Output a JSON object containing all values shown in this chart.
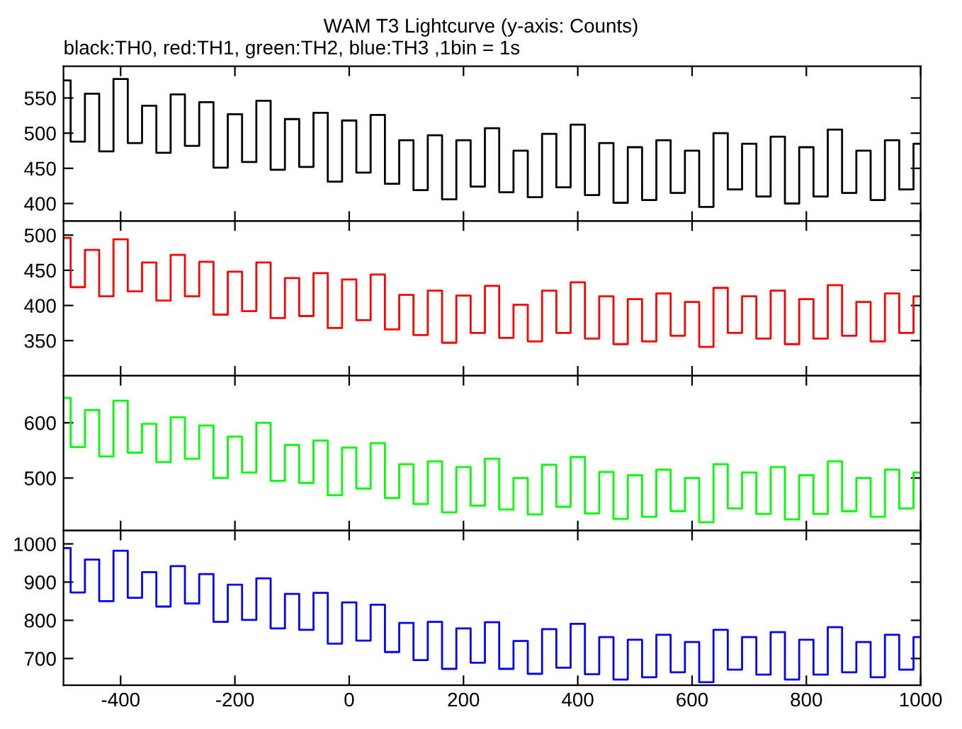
{
  "chart_data": [
    {
      "type": "step",
      "title": "WAM T3 Lightcurve (y-axis: Counts)",
      "subtitle": "black:TH0, red:TH1, green:TH2, blue:TH3 ,1bin = 1s",
      "tick_labels": "y",
      "x": [
        -500,
        -475,
        -450,
        -425,
        -400,
        -375,
        -350,
        -325,
        -300,
        -275,
        -250,
        -225,
        -200,
        -175,
        -150,
        -125,
        -100,
        -75,
        -50,
        -25,
        0,
        25,
        50,
        75,
        100,
        125,
        150,
        175,
        200,
        225,
        250,
        275,
        300,
        325,
        350,
        375,
        400,
        425,
        450,
        475,
        500,
        525,
        550,
        575,
        600,
        625,
        650,
        675,
        700,
        725,
        750,
        775,
        800,
        825,
        850,
        875,
        900,
        925,
        950,
        975,
        1000
      ],
      "series": [
        {
          "color": "#000000",
          "values": [
            575,
            488,
            556,
            474,
            577,
            486,
            539,
            472,
            555,
            482,
            544,
            451,
            527,
            459,
            546,
            448,
            520,
            452,
            529,
            431,
            518,
            444,
            526,
            428,
            490,
            419,
            497,
            406,
            490,
            424,
            507,
            416,
            475,
            409,
            499,
            423,
            512,
            412,
            486,
            401,
            480,
            405,
            490,
            415,
            475,
            395,
            500,
            420,
            485,
            410,
            495,
            400,
            480,
            410,
            505,
            415,
            475,
            405,
            490,
            420,
            485
          ]
        }
      ],
      "xlim": [
        -500,
        1000
      ],
      "xticks": [
        -400,
        -200,
        0,
        200,
        400,
        600,
        800,
        1000
      ],
      "ylim": [
        375,
        595
      ],
      "yticks": [
        400,
        450,
        500,
        550
      ]
    },
    {
      "type": "step",
      "tick_labels": "y",
      "x": [
        -500,
        -475,
        -450,
        -425,
        -400,
        -375,
        -350,
        -325,
        -300,
        -275,
        -250,
        -225,
        -200,
        -175,
        -150,
        -125,
        -100,
        -75,
        -50,
        -25,
        0,
        25,
        50,
        75,
        100,
        125,
        150,
        175,
        200,
        225,
        250,
        275,
        300,
        325,
        350,
        375,
        400,
        425,
        450,
        475,
        500,
        525,
        550,
        575,
        600,
        625,
        650,
        675,
        700,
        725,
        750,
        775,
        800,
        825,
        850,
        875,
        900,
        925,
        950,
        975,
        1000
      ],
      "series": [
        {
          "color": "#ff0000",
          "values": [
            496,
            426,
            479,
            413,
            494,
            420,
            461,
            407,
            472,
            413,
            462,
            387,
            448,
            392,
            461,
            382,
            439,
            385,
            446,
            368,
            437,
            379,
            444,
            366,
            415,
            358,
            421,
            347,
            414,
            361,
            428,
            354,
            401,
            349,
            421,
            361,
            433,
            353,
            413,
            345,
            409,
            349,
            417,
            357,
            405,
            341,
            425,
            361,
            413,
            353,
            421,
            345,
            409,
            353,
            429,
            357,
            405,
            349,
            417,
            361,
            413
          ]
        }
      ],
      "xlim": [
        -500,
        1000
      ],
      "xticks": [
        -400,
        -200,
        0,
        200,
        400,
        600,
        800,
        1000
      ],
      "ylim": [
        300,
        520
      ],
      "yticks": [
        350,
        400,
        450,
        500
      ]
    },
    {
      "type": "step",
      "tick_labels": "y",
      "x": [
        -500,
        -475,
        -450,
        -425,
        -400,
        -375,
        -350,
        -325,
        -300,
        -275,
        -250,
        -225,
        -200,
        -175,
        -150,
        -125,
        -100,
        -75,
        -50,
        -25,
        0,
        25,
        50,
        75,
        100,
        125,
        150,
        175,
        200,
        225,
        250,
        275,
        300,
        325,
        350,
        375,
        400,
        425,
        450,
        475,
        500,
        525,
        550,
        575,
        600,
        625,
        650,
        675,
        700,
        725,
        750,
        775,
        800,
        825,
        850,
        875,
        900,
        925,
        950,
        975,
        1000
      ],
      "series": [
        {
          "color": "#00ff00",
          "values": [
            645,
            556,
            623,
            539,
            640,
            546,
            598,
            529,
            610,
            535,
            595,
            500,
            575,
            510,
            600,
            495,
            560,
            491,
            568,
            469,
            555,
            481,
            563,
            464,
            525,
            453,
            530,
            438,
            520,
            450,
            535,
            443,
            500,
            434,
            524,
            448,
            538,
            436,
            511,
            426,
            505,
            430,
            515,
            440,
            500,
            420,
            525,
            445,
            510,
            435,
            520,
            425,
            505,
            435,
            530,
            440,
            500,
            430,
            515,
            445,
            510
          ]
        }
      ],
      "xlim": [
        -500,
        1000
      ],
      "xticks": [
        -400,
        -200,
        0,
        200,
        400,
        600,
        800,
        1000
      ],
      "ylim": [
        405,
        685
      ],
      "yticks": [
        500,
        600
      ]
    },
    {
      "type": "step",
      "x": [
        -500,
        -475,
        -450,
        -425,
        -400,
        -375,
        -350,
        -325,
        -300,
        -275,
        -250,
        -225,
        -200,
        -175,
        -150,
        -125,
        -100,
        -75,
        -50,
        -25,
        0,
        25,
        50,
        75,
        100,
        125,
        150,
        175,
        200,
        225,
        250,
        275,
        300,
        325,
        350,
        375,
        400,
        425,
        450,
        475,
        500,
        525,
        550,
        575,
        600,
        625,
        650,
        675,
        700,
        725,
        750,
        775,
        800,
        825,
        850,
        875,
        900,
        925,
        950,
        975,
        1000
      ],
      "series": [
        {
          "color": "#0000ff",
          "values": [
            989,
            873,
            959,
            850,
            982,
            859,
            926,
            836,
            942,
            844,
            921,
            796,
            893,
            801,
            910,
            779,
            869,
            775,
            872,
            739,
            847,
            747,
            841,
            717,
            793,
            696,
            796,
            673,
            779,
            689,
            795,
            673,
            746,
            660,
            777,
            676,
            791,
            659,
            756,
            645,
            749,
            651,
            762,
            664,
            743,
            638,
            775,
            671,
            756,
            658,
            769,
            645,
            749,
            658,
            782,
            664,
            743,
            651,
            762,
            671,
            756
          ]
        }
      ],
      "xlim": [
        -500,
        1000
      ],
      "xticks": [
        -400,
        -200,
        0,
        200,
        400,
        600,
        800,
        1000
      ],
      "ylim": [
        630,
        1035
      ],
      "yticks": [
        700,
        800,
        900,
        1000
      ]
    }
  ]
}
